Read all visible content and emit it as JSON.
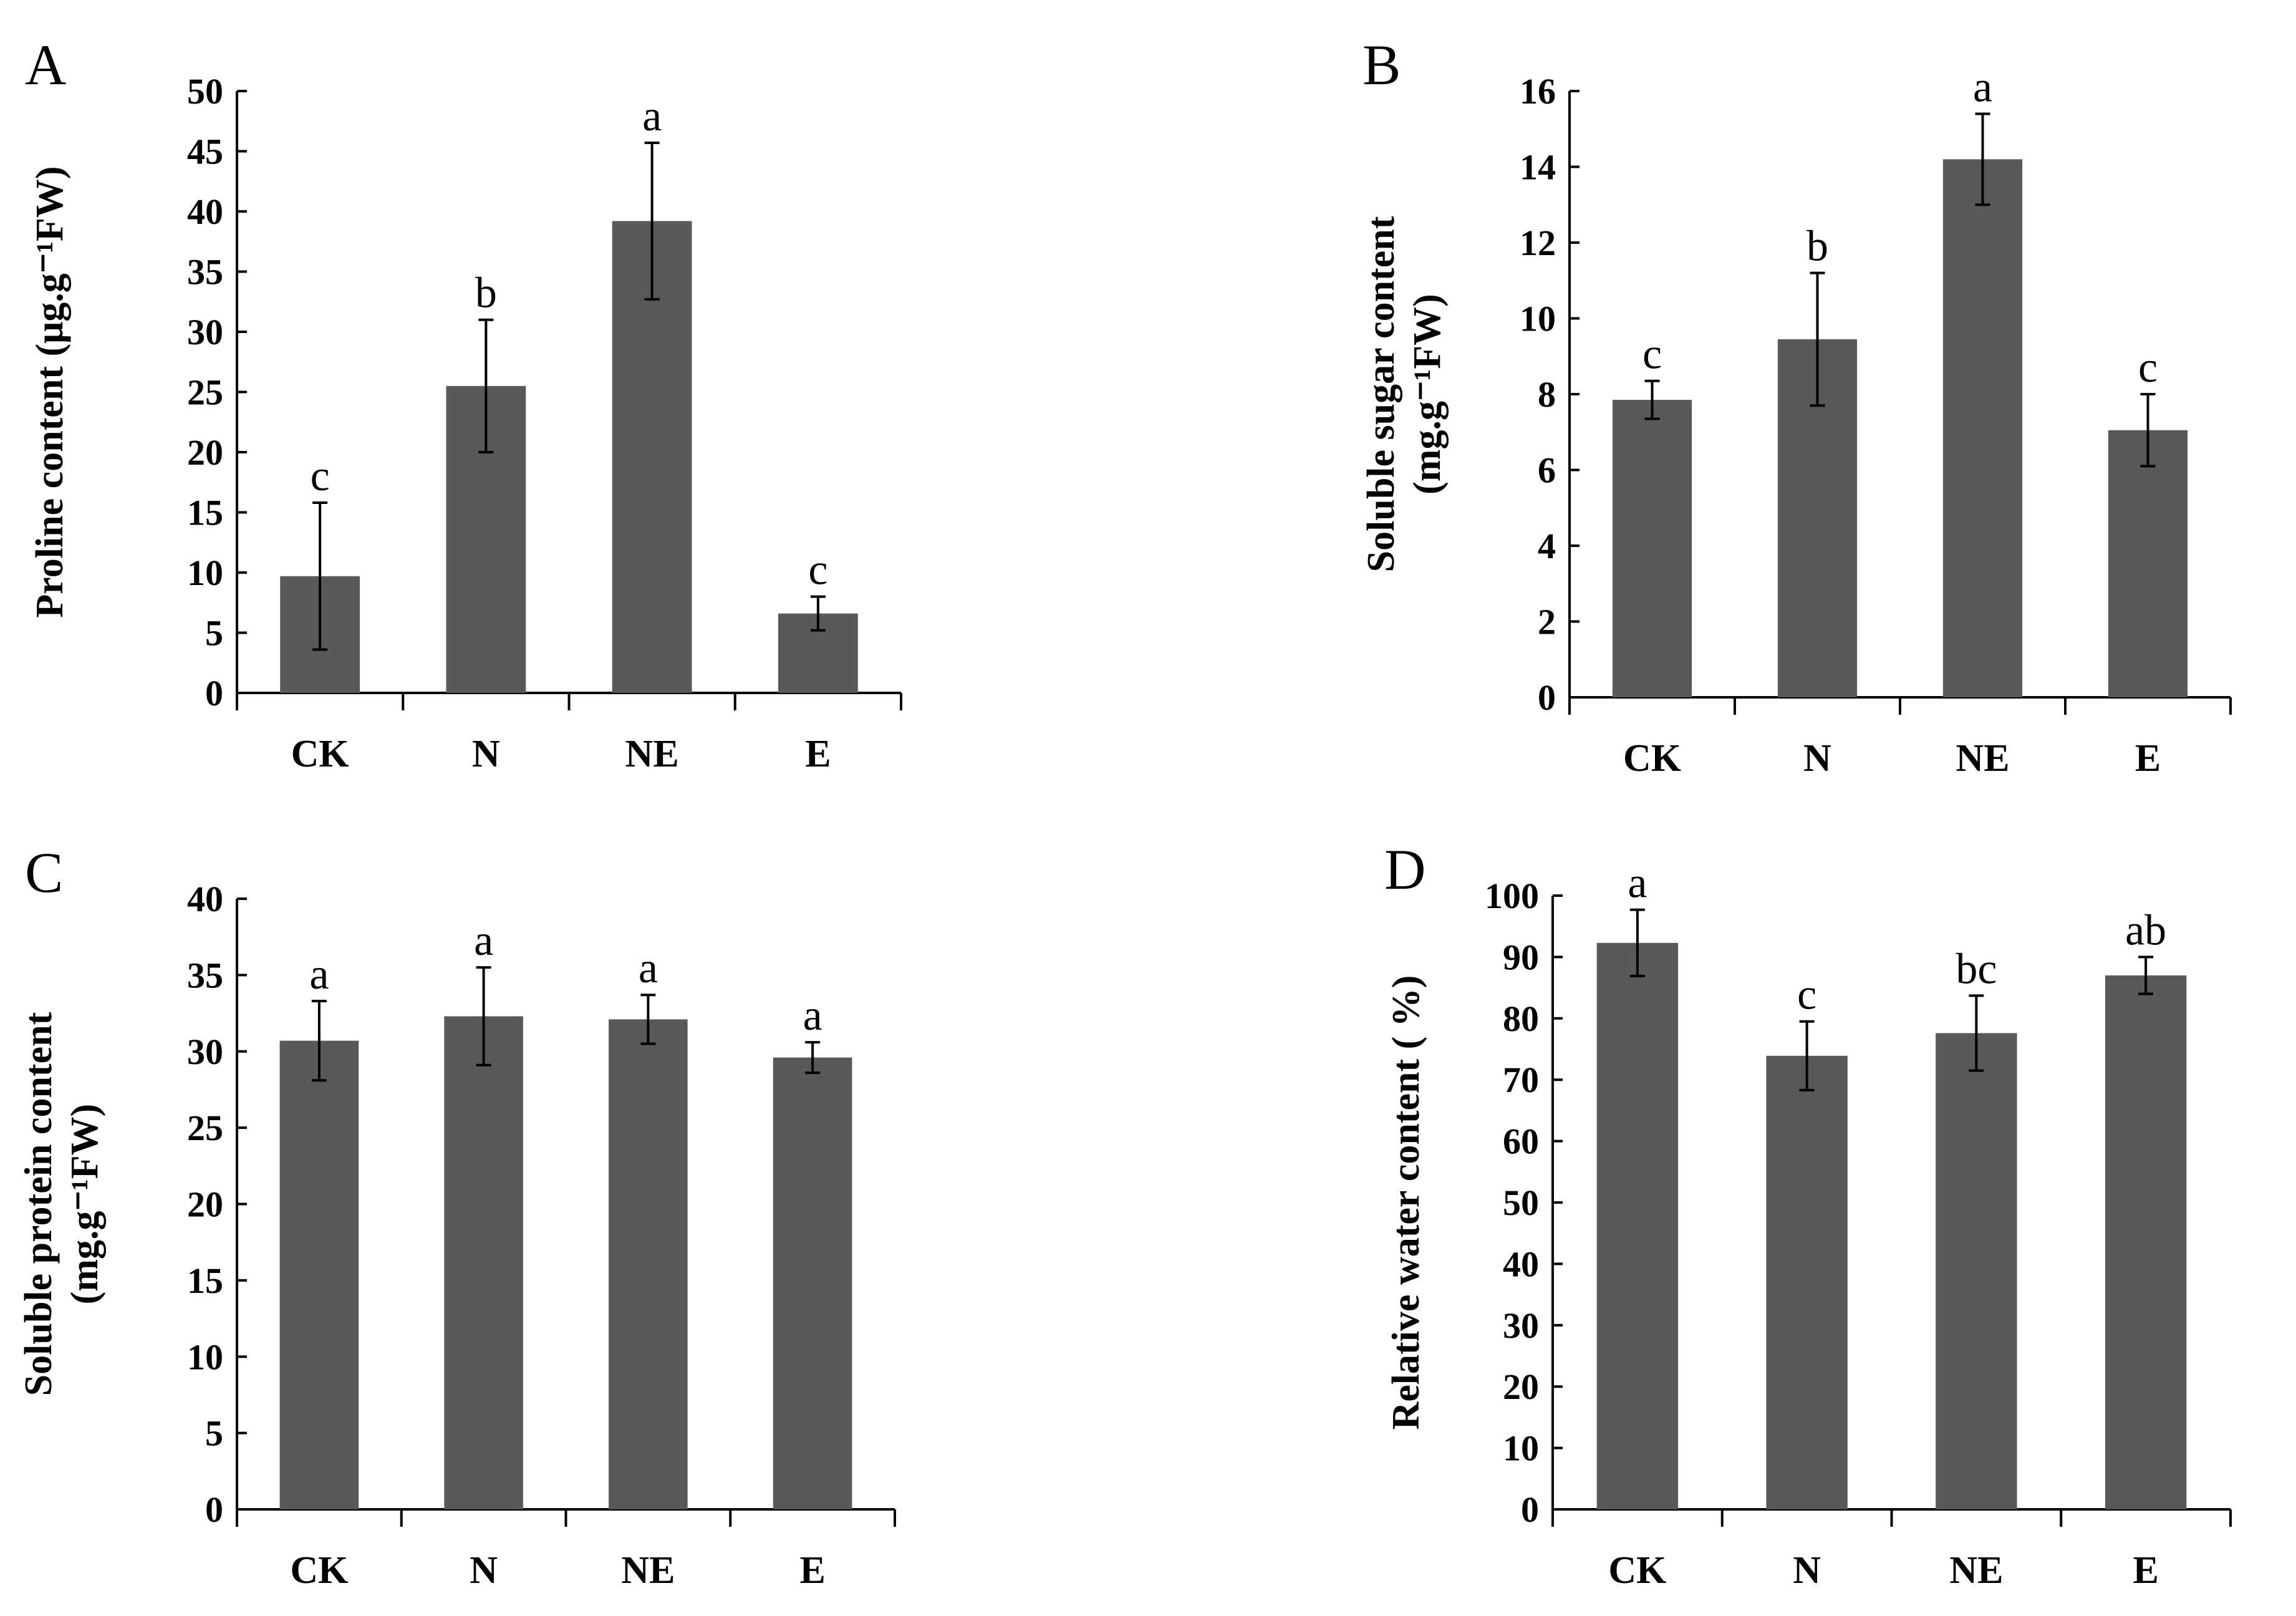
{
  "figure": {
    "background": "#ffffff",
    "bar_color": "#595959"
  },
  "chart_data": [
    {
      "panel": "A",
      "type": "bar",
      "title": "",
      "ylabel_lines": [
        "Proline content (μg.g⁻¹FW)"
      ],
      "categories": [
        "CK",
        "N",
        "NE",
        "E"
      ],
      "values": [
        9.7,
        25.5,
        39.2,
        6.6
      ],
      "errors": [
        6.1,
        5.5,
        6.5,
        1.4
      ],
      "letters": [
        "c",
        "b",
        "a",
        "c"
      ],
      "ylim": [
        0,
        50
      ],
      "yticks": [
        0,
        5,
        10,
        15,
        20,
        25,
        30,
        35,
        40,
        45,
        50
      ]
    },
    {
      "panel": "B",
      "type": "bar",
      "title": "",
      "ylabel_lines": [
        "Soluble sugar content",
        "(mg.g⁻¹FW)"
      ],
      "categories": [
        "CK",
        "N",
        "NE",
        "E"
      ],
      "values": [
        7.85,
        9.45,
        14.2,
        7.05
      ],
      "errors": [
        0.5,
        1.75,
        1.2,
        0.95
      ],
      "letters": [
        "c",
        "b",
        "a",
        "c"
      ],
      "ylim": [
        0,
        16
      ],
      "yticks": [
        0,
        2,
        4,
        6,
        8,
        10,
        12,
        14,
        16
      ]
    },
    {
      "panel": "C",
      "type": "bar",
      "title": "",
      "ylabel_lines": [
        "Soluble protein content",
        "(mg.g⁻¹FW)"
      ],
      "categories": [
        "CK",
        "N",
        "NE",
        "E"
      ],
      "values": [
        30.7,
        32.3,
        32.1,
        29.6
      ],
      "errors": [
        2.6,
        3.2,
        1.6,
        1.0
      ],
      "letters": [
        "a",
        "a",
        "a",
        "a"
      ],
      "ylim": [
        0,
        40
      ],
      "yticks": [
        0,
        5,
        10,
        15,
        20,
        25,
        30,
        35,
        40
      ]
    },
    {
      "panel": "D",
      "type": "bar",
      "title": "",
      "ylabel_lines": [
        "Relative water content ( %)"
      ],
      "categories": [
        "CK",
        "N",
        "NE",
        "E"
      ],
      "values": [
        92.3,
        73.9,
        77.6,
        87.0
      ],
      "errors": [
        5.4,
        5.6,
        6.1,
        3.0
      ],
      "letters": [
        "a",
        "c",
        "bc",
        "ab"
      ],
      "ylim": [
        0,
        100
      ],
      "yticks": [
        0,
        10,
        20,
        30,
        40,
        50,
        60,
        70,
        80,
        90,
        100
      ]
    }
  ]
}
